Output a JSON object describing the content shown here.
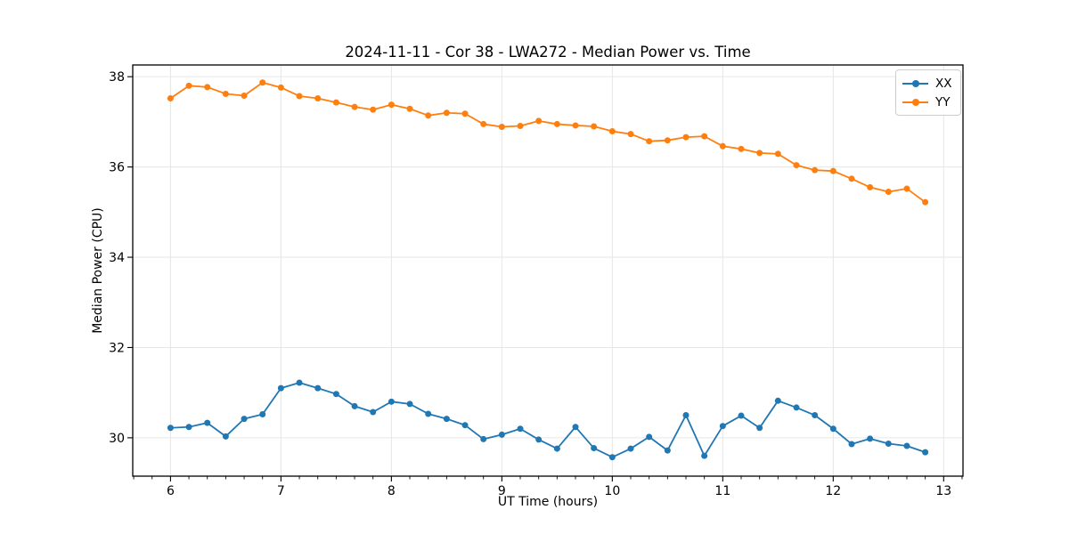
{
  "figure": {
    "background": "#ffffff",
    "spine_color": "#000000",
    "grid_color": "#e6e6e6",
    "tick_color": "#000000"
  },
  "chart_data": {
    "type": "line",
    "title": "2024-11-11 - Cor 38 - LWA272 - Median Power vs. Time",
    "xlabel": "UT Time (hours)",
    "ylabel": "Median Power (CPU)",
    "xlim": [
      5.658,
      13.175
    ],
    "ylim": [
      29.15,
      38.26
    ],
    "xticks": [
      6,
      7,
      8,
      9,
      10,
      11,
      12,
      13
    ],
    "yticks": [
      30,
      32,
      34,
      36,
      38
    ],
    "x_minor_step": 0.166667,
    "grid": true,
    "legend_position": "upper right",
    "marker": "o",
    "marker_radius": 3.5,
    "line_width": 1.8,
    "x": [
      6.0,
      6.1667,
      6.3333,
      6.5,
      6.6667,
      6.8333,
      7.0,
      7.1667,
      7.3333,
      7.5,
      7.6667,
      7.8333,
      8.0,
      8.1667,
      8.3333,
      8.5,
      8.6667,
      8.8333,
      9.0,
      9.1667,
      9.3333,
      9.5,
      9.6667,
      9.8333,
      10.0,
      10.1667,
      10.3333,
      10.5,
      10.6667,
      10.8333,
      11.0,
      11.1667,
      11.3333,
      11.5,
      11.6667,
      11.8333,
      12.0,
      12.1667,
      12.3333,
      12.5,
      12.6667,
      12.8333
    ],
    "series": [
      {
        "name": "XX",
        "color": "#1f77b4",
        "values": [
          30.22,
          30.24,
          30.33,
          30.03,
          30.42,
          30.52,
          31.1,
          31.22,
          31.1,
          30.97,
          30.7,
          30.57,
          30.8,
          30.75,
          30.53,
          30.42,
          30.28,
          29.97,
          30.07,
          30.2,
          29.96,
          29.76,
          30.24,
          29.77,
          29.57,
          29.76,
          30.02,
          29.72,
          30.5,
          29.6,
          30.26,
          30.49,
          30.22,
          30.82,
          30.67,
          30.5,
          30.2,
          29.86,
          29.98,
          29.87,
          29.82,
          29.68
        ]
      },
      {
        "name": "YY",
        "color": "#ff7f0e",
        "values": [
          37.52,
          37.8,
          37.77,
          37.62,
          37.58,
          37.87,
          37.76,
          37.57,
          37.52,
          37.43,
          37.33,
          37.27,
          37.38,
          37.29,
          37.14,
          37.2,
          37.18,
          36.95,
          36.89,
          36.91,
          37.02,
          36.95,
          36.92,
          36.9,
          36.79,
          36.73,
          36.57,
          36.59,
          36.66,
          36.68,
          36.46,
          36.4,
          36.31,
          36.29,
          36.04,
          35.93,
          35.91,
          35.74,
          35.55,
          35.45,
          35.52,
          35.22
        ]
      }
    ]
  }
}
